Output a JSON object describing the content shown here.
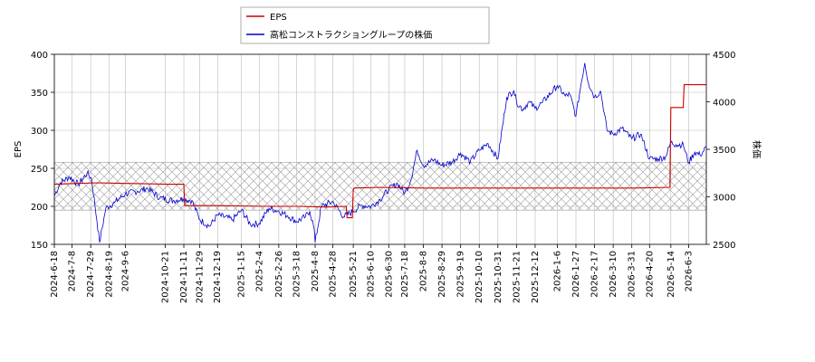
{
  "chart_data": {
    "type": "line",
    "legend": {
      "placement": "top-center",
      "entries": [
        "EPS",
        "高松コンストラクショングループの株価"
      ]
    },
    "colors": {
      "eps": "#cc0000",
      "price": "#0000cc",
      "band_edge": "#999999",
      "grid": "#bbbbbb"
    },
    "y_left": {
      "label": "EPS",
      "range": [
        150,
        400
      ],
      "ticks": [
        "150",
        "200",
        "250",
        "300",
        "350",
        "400"
      ]
    },
    "y_right": {
      "label": "株価",
      "range": [
        2500,
        4500
      ],
      "ticks": [
        "2500",
        "3000",
        "3500",
        "4000",
        "4500"
      ]
    },
    "x": {
      "range": [
        "2024-06-18",
        "2026-06-23"
      ],
      "tick_labels": [
        "2024-6-18",
        "2024-7-8",
        "2024-7-29",
        "2024-8-19",
        "2024-9-6",
        "2024-10-21",
        "2024-11-11",
        "2024-11-29",
        "2024-12-19",
        "2025-1-15",
        "2025-2-4",
        "2025-2-26",
        "2025-3-18",
        "2025-4-8",
        "2025-4-28",
        "2025-5-21",
        "2025-6-10",
        "2025-6-30",
        "2025-7-18",
        "2025-8-8",
        "2025-8-29",
        "2025-9-19",
        "2025-10-10",
        "2025-10-31",
        "2025-11-21",
        "2025-12-12",
        "2026-1-6",
        "2026-1-27",
        "2026-2-17",
        "2026-3-10",
        "2026-3-31",
        "2026-4-20",
        "2026-5-14",
        "2026-6-3"
      ],
      "tick_dates": [
        "2024-06-18",
        "2024-07-08",
        "2024-07-29",
        "2024-08-19",
        "2024-09-06",
        "2024-10-21",
        "2024-11-11",
        "2024-11-29",
        "2024-12-19",
        "2025-01-15",
        "2025-02-04",
        "2025-02-26",
        "2025-03-18",
        "2025-04-08",
        "2025-04-28",
        "2025-05-21",
        "2025-06-10",
        "2025-06-30",
        "2025-07-18",
        "2025-08-08",
        "2025-08-29",
        "2025-09-19",
        "2025-10-10",
        "2025-10-31",
        "2025-11-21",
        "2025-12-12",
        "2026-01-06",
        "2026-01-27",
        "2026-02-17",
        "2026-03-10",
        "2026-03-31",
        "2026-04-20",
        "2026-05-14",
        "2026-06-03"
      ]
    },
    "band": {
      "y_range": [
        195,
        258
      ]
    },
    "grid": true,
    "series": [
      {
        "name": "EPS",
        "axis": "left",
        "color": "#cc0000",
        "x": [
          "2024-06-18",
          "2024-07-10",
          "2024-08-05",
          "2024-09-15",
          "2024-10-25",
          "2024-11-11",
          "2024-11-12",
          "2024-12-20",
          "2025-02-15",
          "2025-03-20",
          "2025-04-20",
          "2025-05-13",
          "2025-05-14",
          "2025-05-20",
          "2025-05-21",
          "2025-05-22",
          "2025-06-20",
          "2025-08-10",
          "2025-10-15",
          "2025-12-15",
          "2026-02-15",
          "2026-04-01",
          "2026-05-13",
          "2026-05-14",
          "2026-05-28",
          "2026-05-29",
          "2026-06-23"
        ],
        "values": [
          229,
          230,
          231,
          230,
          229,
          229,
          201,
          201,
          200,
          200,
          199,
          200,
          185,
          185,
          222,
          224,
          225,
          224,
          224,
          224,
          224,
          224,
          225,
          330,
          330,
          360,
          360
        ]
      },
      {
        "name": "高松コンストラクショングループの株価",
        "axis": "right",
        "color": "#0000cc",
        "x": [
          "2024-06-18",
          "2024-06-25",
          "2024-07-05",
          "2024-07-15",
          "2024-07-25",
          "2024-07-30",
          "2024-08-05",
          "2024-08-08",
          "2024-08-15",
          "2024-08-25",
          "2024-09-06",
          "2024-09-20",
          "2024-10-01",
          "2024-10-15",
          "2024-10-30",
          "2024-11-10",
          "2024-11-20",
          "2024-11-29",
          "2024-12-10",
          "2024-12-19",
          "2025-01-05",
          "2025-01-15",
          "2025-01-25",
          "2025-02-04",
          "2025-02-15",
          "2025-02-26",
          "2025-03-08",
          "2025-03-18",
          "2025-03-28",
          "2025-04-02",
          "2025-04-07",
          "2025-04-08",
          "2025-04-15",
          "2025-04-28",
          "2025-05-10",
          "2025-05-21",
          "2025-05-30",
          "2025-06-10",
          "2025-06-20",
          "2025-06-30",
          "2025-07-10",
          "2025-07-18",
          "2025-07-25",
          "2025-08-01",
          "2025-08-08",
          "2025-08-20",
          "2025-08-29",
          "2025-09-10",
          "2025-09-19",
          "2025-09-30",
          "2025-10-10",
          "2025-10-20",
          "2025-10-31",
          "2025-11-10",
          "2025-11-18",
          "2025-11-21",
          "2025-11-28",
          "2025-12-05",
          "2025-12-12",
          "2025-12-20",
          "2026-01-06",
          "2026-01-15",
          "2026-01-20",
          "2026-01-27",
          "2026-02-02",
          "2026-02-06",
          "2026-02-10",
          "2026-02-17",
          "2026-02-24",
          "2026-03-03",
          "2026-03-10",
          "2026-03-20",
          "2026-03-31",
          "2026-04-10",
          "2026-04-20",
          "2026-04-30",
          "2026-05-08",
          "2026-05-14",
          "2026-05-20",
          "2026-05-28",
          "2026-06-03",
          "2026-06-10",
          "2026-06-16",
          "2026-06-23"
        ],
        "values": [
          3010,
          3150,
          3210,
          3130,
          3250,
          3190,
          2750,
          2520,
          2880,
          2940,
          3030,
          3060,
          3090,
          2990,
          2960,
          2980,
          2960,
          2760,
          2690,
          2810,
          2760,
          2860,
          2710,
          2720,
          2880,
          2850,
          2800,
          2740,
          2790,
          2850,
          2660,
          2520,
          2900,
          2950,
          2790,
          2850,
          2910,
          2900,
          2970,
          3080,
          3140,
          3040,
          3180,
          3490,
          3330,
          3390,
          3330,
          3370,
          3460,
          3370,
          3490,
          3560,
          3400,
          4050,
          4120,
          4000,
          3920,
          4000,
          3930,
          3990,
          4170,
          4060,
          4080,
          3850,
          4200,
          4410,
          4200,
          4050,
          4110,
          3700,
          3660,
          3720,
          3610,
          3660,
          3400,
          3400,
          3420,
          3570,
          3550,
          3550,
          3360,
          3470,
          3440,
          3520
        ]
      }
    ]
  }
}
